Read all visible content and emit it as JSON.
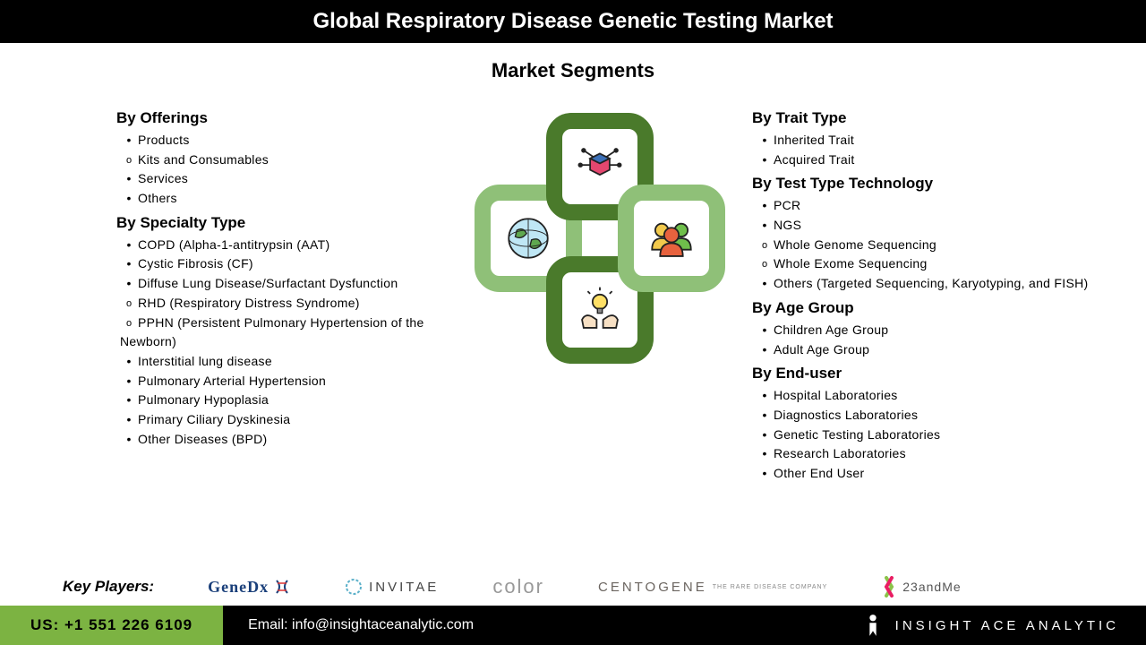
{
  "header": {
    "title": "Global Respiratory Disease Genetic Testing Market"
  },
  "subtitle": "Market Segments",
  "colors": {
    "title_bg": "#000000",
    "title_fg": "#ffffff",
    "accent_green": "#7cb342",
    "ring_dark": "#4a7a2b",
    "ring_light": "#8fc078",
    "body_bg": "#ffffff",
    "text": "#000000"
  },
  "segments_left": [
    {
      "title": "By Offerings",
      "items": [
        {
          "text": "Products",
          "sub": false
        },
        {
          "text": "Kits and Consumables",
          "sub": true
        },
        {
          "text": "Services",
          "sub": false
        },
        {
          "text": "Others",
          "sub": false
        }
      ]
    },
    {
      "title": "By Specialty Type",
      "items": [
        {
          "text": "COPD (Alpha-1-antitrypsin (AAT)",
          "sub": false
        },
        {
          "text": "Cystic Fibrosis (CF)",
          "sub": false
        },
        {
          "text": "Diffuse Lung Disease/Surfactant Dysfunction",
          "sub": false
        },
        {
          "text": "RHD (Respiratory Distress Syndrome)",
          "sub": true
        },
        {
          "text": "PPHN (Persistent Pulmonary Hypertension of the Newborn)",
          "sub": true
        },
        {
          "text": "Interstitial lung disease",
          "sub": false
        },
        {
          "text": "Pulmonary Arterial Hypertension",
          "sub": false
        },
        {
          "text": "Pulmonary Hypoplasia",
          "sub": false
        },
        {
          "text": "Primary Ciliary Dyskinesia",
          "sub": false
        },
        {
          "text": "Other Diseases (BPD)",
          "sub": false
        }
      ]
    }
  ],
  "segments_right": [
    {
      "title": "By Trait Type",
      "items": [
        {
          "text": "Inherited Trait",
          "sub": false
        },
        {
          "text": "Acquired Trait",
          "sub": false
        }
      ]
    },
    {
      "title": "By Test Type Technology",
      "items": [
        {
          "text": "PCR",
          "sub": false
        },
        {
          "text": "NGS",
          "sub": false
        },
        {
          "text": "Whole Genome Sequencing",
          "sub": true
        },
        {
          "text": "Whole Exome Sequencing",
          "sub": true
        },
        {
          "text": "Others (Targeted Sequencing, Karyotyping, and FISH)",
          "sub": false
        }
      ]
    },
    {
      "title": "By Age Group",
      "items": [
        {
          "text": "Children Age Group",
          "sub": false
        },
        {
          "text": "Adult Age Group",
          "sub": false
        }
      ]
    },
    {
      "title": "By End-user",
      "items": [
        {
          "text": "Hospital Laboratories",
          "sub": false
        },
        {
          "text": "Diagnostics Laboratories",
          "sub": false
        },
        {
          "text": "Genetic Testing Laboratories",
          "sub": false
        },
        {
          "text": "Research Laboratories",
          "sub": false
        },
        {
          "text": "Other End User",
          "sub": false
        }
      ]
    }
  ],
  "center_icons": {
    "top": "network-cube-icon",
    "left": "globe-icon",
    "right": "people-icon",
    "bottom": "idea-hands-icon"
  },
  "key_players": {
    "label": "Key Players:",
    "logos": [
      "GeneDx",
      "INVITAE",
      "color",
      "CENTOGENE",
      "23andMe"
    ],
    "centogene_tag": "THE RARE DISEASE COMPANY"
  },
  "footer": {
    "phone_label": "US: +1 551 226 6109",
    "email_label": "Email: info@insightaceanalytic.com",
    "brand": "INSIGHT ACE ANALYTIC"
  }
}
